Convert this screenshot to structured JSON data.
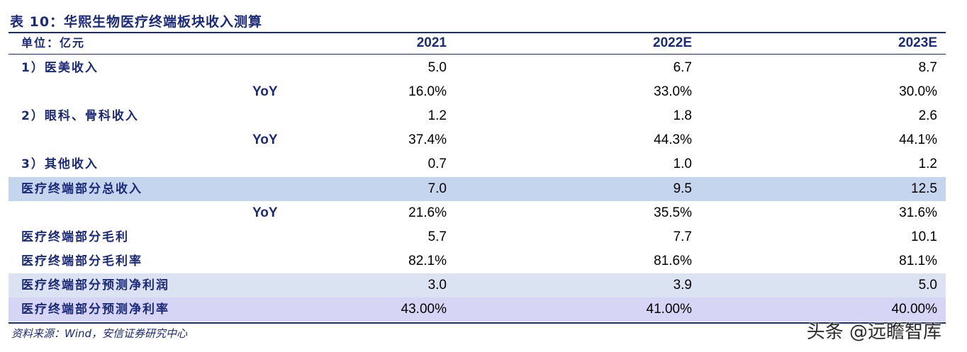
{
  "title": "表 10：华熙生物医疗终端板块收入测算",
  "header": {
    "unit": "单位：亿元",
    "cols": [
      "2021",
      "2022E",
      "2023E"
    ]
  },
  "rows": [
    {
      "label": "1）医美收入",
      "yoy": "",
      "values": [
        "5.0",
        "6.7",
        "8.7"
      ]
    },
    {
      "label": "",
      "yoy": "YoY",
      "values": [
        "16.0%",
        "33.0%",
        "30.0%"
      ]
    },
    {
      "label": "2）眼科、骨科收入",
      "yoy": "",
      "values": [
        "1.2",
        "1.8",
        "2.6"
      ]
    },
    {
      "label": "",
      "yoy": "YoY",
      "values": [
        "37.4%",
        "44.3%",
        "44.1%"
      ]
    },
    {
      "label": "3）其他收入",
      "yoy": "",
      "values": [
        "0.7",
        "1.0",
        "1.2"
      ]
    },
    {
      "label": "医疗终端部分总收入",
      "yoy": "",
      "values": [
        "7.0",
        "9.5",
        "12.5"
      ]
    },
    {
      "label": "",
      "yoy": "YoY",
      "values": [
        "21.6%",
        "35.5%",
        "31.6%"
      ]
    },
    {
      "label": "医疗终端部分毛利",
      "yoy": "",
      "values": [
        "5.7",
        "7.7",
        "10.1"
      ]
    },
    {
      "label": "医疗终端部分毛利率",
      "yoy": "",
      "values": [
        "82.1%",
        "81.6%",
        "81.1%"
      ]
    },
    {
      "label": "医疗终端部分预测净利润",
      "yoy": "",
      "values": [
        "3.0",
        "3.9",
        "5.0"
      ]
    },
    {
      "label": "医疗终端部分预测净利率",
      "yoy": "",
      "values": [
        "43.00%",
        "41.00%",
        "40.00%"
      ]
    }
  ],
  "source": "资料来源：Wind，安信证券研究中心",
  "watermark": "头条 @远瞻智库",
  "colors": {
    "text_accent": "#1b2a7a",
    "band_blue": "#c6d5ee",
    "band_pale": "#dbe2f2",
    "band_lavender": "#d6d5f5"
  }
}
